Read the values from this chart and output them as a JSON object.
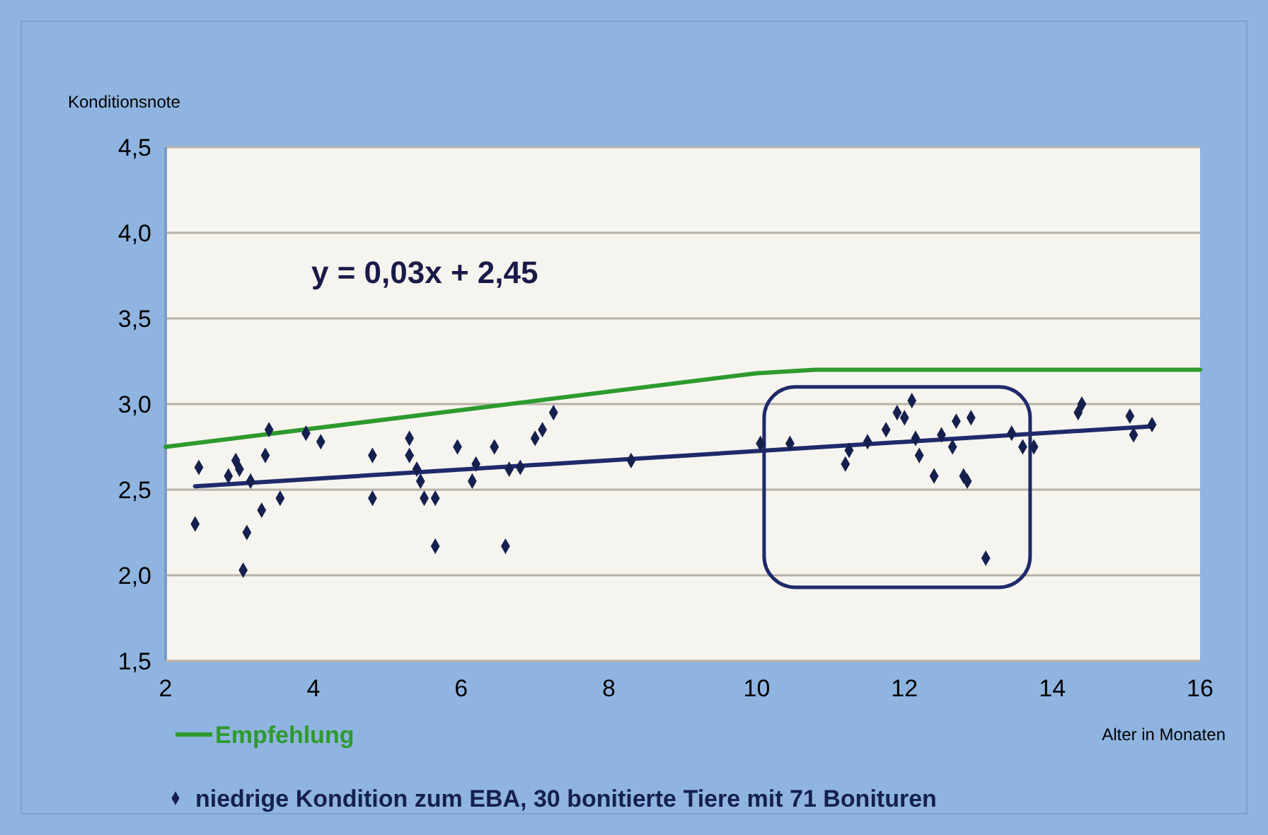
{
  "chart_data": {
    "type": "scatter",
    "xlabel": "Alter in Monaten",
    "ylabel": "Konditionsnote",
    "xlim": [
      2,
      16
    ],
    "xticks": [
      2,
      4,
      6,
      8,
      10,
      12,
      14,
      16
    ],
    "ylim": [
      1.5,
      4.5
    ],
    "yticks": [
      {
        "value": 1.5,
        "label": "1,5"
      },
      {
        "value": 2,
        "label": "2,0"
      },
      {
        "value": 2.5,
        "label": "2,5"
      },
      {
        "value": 3,
        "label": "3,0"
      },
      {
        "value": 3.5,
        "label": "3,5"
      },
      {
        "value": 4,
        "label": "4,0"
      },
      {
        "value": 4.5,
        "label": "4,5"
      }
    ],
    "grid": "y",
    "legend": "bottom",
    "annotations": [
      "y = 0,03x + 2,45"
    ],
    "series": [
      {
        "type": "line",
        "name": "Empfehlung",
        "color": "#2e9a2e",
        "x": [
          2,
          10,
          10.8,
          16
        ],
        "values": [
          2.75,
          3.18,
          3.2,
          3.2
        ]
      },
      {
        "type": "line",
        "color": "#1f2a6b",
        "x": [
          2.4,
          15.35
        ],
        "values": [
          2.52,
          2.87
        ]
      },
      {
        "marker": "diamond",
        "name": "niedrige Kondition zum EBA, 30 bonitierte Tiere mit 71 Bonituren",
        "color": "#15204f",
        "x": [
          2.4,
          2.45,
          2.85,
          2.95,
          3.0,
          3.05,
          3.1,
          3.15,
          3.3,
          3.35,
          3.4,
          3.55,
          3.9,
          4.1,
          4.8,
          4.8,
          5.3,
          5.3,
          5.4,
          5.45,
          5.5,
          5.65,
          5.65,
          5.95,
          6.15,
          6.2,
          6.45,
          6.6,
          6.65,
          6.8,
          7.0,
          7.1,
          7.25,
          8.3,
          10.05,
          10.45,
          11.2,
          11.25,
          11.5,
          11.75,
          11.9,
          12.0,
          12.1,
          12.15,
          12.2,
          12.4,
          12.5,
          12.65,
          12.7,
          12.8,
          12.85,
          12.9,
          13.1,
          13.45,
          13.6,
          13.75,
          14.35,
          14.4,
          15.05,
          15.1,
          15.35
        ],
        "values": [
          2.3,
          2.63,
          2.58,
          2.67,
          2.62,
          2.03,
          2.25,
          2.55,
          2.38,
          2.7,
          2.85,
          2.45,
          2.83,
          2.78,
          2.7,
          2.45,
          2.8,
          2.7,
          2.62,
          2.55,
          2.45,
          2.45,
          2.17,
          2.75,
          2.55,
          2.65,
          2.75,
          2.17,
          2.62,
          2.63,
          2.8,
          2.85,
          2.95,
          2.67,
          2.77,
          2.77,
          2.65,
          2.73,
          2.78,
          2.85,
          2.95,
          2.92,
          3.02,
          2.8,
          2.7,
          2.58,
          2.82,
          2.75,
          2.9,
          2.58,
          2.55,
          2.92,
          2.1,
          2.83,
          2.75,
          2.75,
          2.95,
          3.0,
          2.93,
          2.82,
          2.88
        ]
      }
    ]
  }
}
